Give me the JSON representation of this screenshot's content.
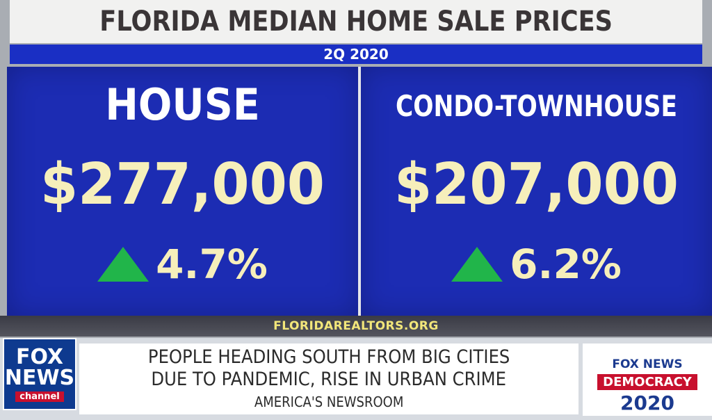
{
  "header": {
    "title": "FLORIDA MEDIAN HOME SALE PRICES",
    "subtitle": "2Q 2020"
  },
  "panels": [
    {
      "label": "HOUSE",
      "price": "$277,000",
      "change": "4.7%",
      "direction": "up"
    },
    {
      "label": "CONDO-TOWNHOUSE",
      "price": "$207,000",
      "change": "6.2%",
      "direction": "up"
    }
  ],
  "source": "FLORIDAREALTORS.ORG",
  "ticker": {
    "logo_lines": [
      "FOX",
      "NEWS",
      "channel"
    ],
    "headline_lines": [
      "PEOPLE HEADING SOUTH FROM BIG CITIES",
      "DUE TO PANDEMIC, RISE IN URBAN CRIME"
    ],
    "show_name": "AMERICA'S NEWSROOM",
    "dem_brand": "FOX NEWS",
    "dem_word": "DEMOCRACY",
    "dem_year": "2020"
  },
  "colors": {
    "panel_blue": "#1c2cb3",
    "price_cream": "#f6efbb",
    "up_arrow_green": "#21b54a",
    "fox_red": "#c8102e"
  }
}
